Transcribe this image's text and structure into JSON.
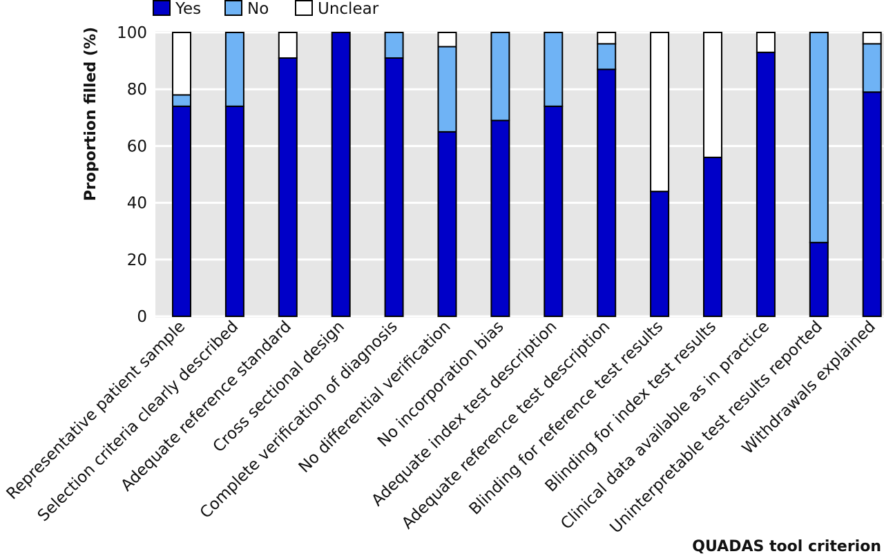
{
  "chart_data": {
    "type": "bar",
    "stacked": true,
    "title": "",
    "xlabel": "QUADAS tool criterion",
    "ylabel": "Proportion filled (%)",
    "ylim": [
      0,
      100
    ],
    "yticks": [
      0,
      20,
      40,
      60,
      80,
      100
    ],
    "grid": true,
    "legend_position": "top-left",
    "categories": [
      "Representative patient sample",
      "Selection criteria clearly described",
      "Adequate reference standard",
      "Cross sectional design",
      "Complete verification of diagnosis",
      "No differential verification",
      "No incorporation bias",
      "Adequate index test description",
      "Adequate reference test description",
      "Blinding for reference test results",
      "Blinding for index test results",
      "Clinical data available as in practice",
      "Uninterpretable test results reported",
      "Withdrawals explained"
    ],
    "series": [
      {
        "name": "Yes",
        "color": "#0000c8",
        "values": [
          74,
          74,
          91,
          100,
          91,
          65,
          69,
          74,
          87,
          44,
          56,
          93,
          26,
          79
        ]
      },
      {
        "name": "No",
        "color": "#6fb3f5",
        "values": [
          4,
          26,
          0,
          0,
          9,
          30,
          31,
          26,
          9,
          0,
          0,
          0,
          74,
          17
        ]
      },
      {
        "name": "Unclear",
        "color": "#ffffff",
        "values": [
          22,
          0,
          9,
          0,
          0,
          5,
          0,
          0,
          4,
          56,
          44,
          7,
          0,
          4
        ]
      }
    ]
  }
}
